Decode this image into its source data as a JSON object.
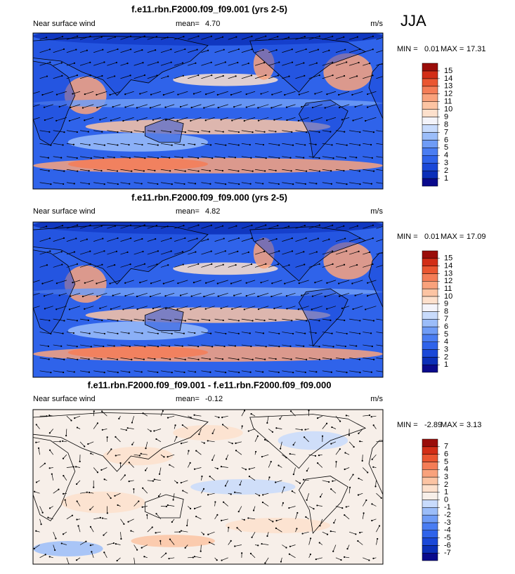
{
  "season": "JJA",
  "panels": [
    {
      "title": "f.e11.rbn.F2000.f09_f09.001 (yrs 2-5)",
      "variable": "Near surface wind",
      "mean_label": "mean=",
      "mean": "4.70",
      "units": "m/s",
      "min_label": "MIN =",
      "min": 0.01,
      "max_label": "MAX =",
      "max": 17.31,
      "colorbar": {
        "levels": [
          1,
          2,
          3,
          4,
          5,
          6,
          7,
          8,
          9,
          10,
          11,
          12,
          13,
          14,
          15
        ],
        "colors": [
          "#0a0a8c",
          "#0b2fb8",
          "#1a48d8",
          "#2f63ea",
          "#4a7df2",
          "#6f9cf6",
          "#9bbdf9",
          "#c8dbfc",
          "#f4f4fa",
          "#fde0cc",
          "#fcc4a3",
          "#f9a27c",
          "#f47d57",
          "#ea5631",
          "#d22e17",
          "#9a0d0a"
        ]
      }
    },
    {
      "title": "f.e11.rbn.F2000.f09_f09.000 (yrs 2-5)",
      "variable": "Near surface wind",
      "mean_label": "mean=",
      "mean": "4.82",
      "units": "m/s",
      "min_label": "MIN =",
      "min": 0.01,
      "max_label": "MAX =",
      "max": 17.09,
      "colorbar": {
        "levels": [
          1,
          2,
          3,
          4,
          5,
          6,
          7,
          8,
          9,
          10,
          11,
          12,
          13,
          14,
          15
        ],
        "colors": [
          "#0a0a8c",
          "#0b2fb8",
          "#1a48d8",
          "#2f63ea",
          "#4a7df2",
          "#6f9cf6",
          "#9bbdf9",
          "#c8dbfc",
          "#f4f4fa",
          "#fde0cc",
          "#fcc4a3",
          "#f9a27c",
          "#f47d57",
          "#ea5631",
          "#d22e17",
          "#9a0d0a"
        ]
      }
    },
    {
      "title": "f.e11.rbn.F2000.f09_f09.001 - f.e11.rbn.F2000.f09_f09.000",
      "variable": "Near surface wind",
      "mean_label": "mean=",
      "mean": "-0.12",
      "units": "m/s",
      "min_label": "MIN =",
      "min": -2.89,
      "max_label": "MAX =",
      "max": 3.13,
      "colorbar": {
        "levels": [
          -7,
          -6,
          -5,
          -4,
          -3,
          -2,
          -1,
          0,
          1,
          2,
          3,
          4,
          5,
          6,
          7
        ],
        "colors": [
          "#0a0a8c",
          "#0b2fb8",
          "#1a48d8",
          "#2f63ea",
          "#4a7df2",
          "#6f9cf6",
          "#9bbdf9",
          "#c8dbfc",
          "#f7efe9",
          "#fde0cc",
          "#fcc4a3",
          "#f9a27c",
          "#f47d57",
          "#ea5631",
          "#d22e17",
          "#9a0d0a"
        ]
      }
    }
  ]
}
